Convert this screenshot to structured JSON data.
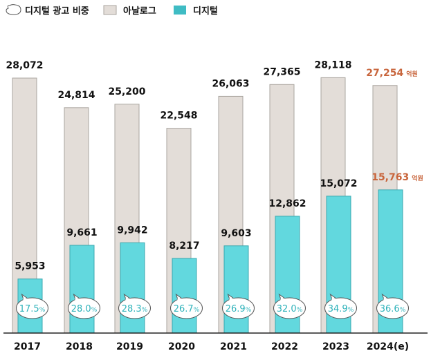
{
  "legend": {
    "share_label": "디지털 광고 비중",
    "analog_label": "아날로그",
    "digital_label": "디지털"
  },
  "colors": {
    "analog": "#e3ddd8",
    "analog_border": "#aaa59f",
    "digital": "#62d8de",
    "digital_border": "#3aa9b0",
    "estimate_text": "#c8653c",
    "percent_text": "#2eb2ba"
  },
  "unit": "억원",
  "chart_data": {
    "type": "bar",
    "categories": [
      "2017",
      "2018",
      "2019",
      "2020",
      "2021",
      "2022",
      "2023",
      "2024(e)"
    ],
    "series": [
      {
        "name": "아날로그",
        "values": [
          28072,
          24814,
          25200,
          22548,
          26063,
          27365,
          28118,
          27254
        ]
      },
      {
        "name": "디지털",
        "values": [
          5953,
          9661,
          9942,
          8217,
          9603,
          12862,
          15072,
          15763
        ]
      }
    ],
    "value_labels": {
      "analog": [
        "28,072",
        "24,814",
        "25,200",
        "22,548",
        "26,063",
        "27,365",
        "28,118",
        "27,254"
      ],
      "digital": [
        "5,953",
        "9,661",
        "9,942",
        "8,217",
        "9,603",
        "12,862",
        "15,072",
        "15,763"
      ]
    },
    "digital_share_percent": [
      17.5,
      28.0,
      28.3,
      26.7,
      26.9,
      32.0,
      34.9,
      36.6
    ],
    "digital_share_labels": [
      "17.5",
      "28.0",
      "28.3",
      "26.7",
      "26.9",
      "32.0",
      "34.9",
      "36.6"
    ],
    "estimate_unit_on_last": "억원",
    "ylim": [
      0,
      28118
    ],
    "grid": false,
    "legend_position": "top-left"
  }
}
